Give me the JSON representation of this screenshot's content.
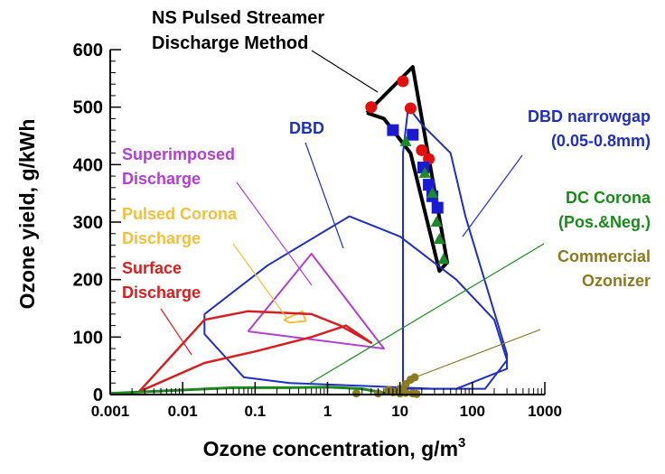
{
  "chart_data": {
    "type": "scatter",
    "title": "",
    "xlabel": "Ozone concentration, g/m",
    "xlabel_sup": "3",
    "ylabel": "Ozone yield, g/kWh",
    "x_scale": "log",
    "xlim": [
      0.001,
      1000
    ],
    "ylim": [
      0,
      600
    ],
    "xticks": [
      0.001,
      0.01,
      0.1,
      1,
      10,
      100,
      1000
    ],
    "xtick_labels": [
      "0.001",
      "0.01",
      "0.1",
      "1",
      "10",
      "100",
      "1000"
    ],
    "yticks": [
      0,
      100,
      200,
      300,
      400,
      500,
      600
    ],
    "ytick_labels": [
      "0",
      "100",
      "200",
      "300",
      "400",
      "500",
      "600"
    ],
    "colors": {
      "ns": "#000000",
      "dbd": "#1f2fbf",
      "superimposed": "#b040d0",
      "pulsed_corona": "#f0c040",
      "surface": "#d42020",
      "dc_corona": "#1a8a1a",
      "commercial": "#8a7a20",
      "ns_circle": "#e01010",
      "ns_square": "#1a1ad0",
      "ns_triangle": "#1a8a2a"
    },
    "regions": [
      {
        "name": "NS Pulsed Streamer Discharge Method",
        "color": "ns",
        "width": 4,
        "points": [
          [
            3.5,
            490
          ],
          [
            15,
            570
          ],
          [
            45,
            230
          ],
          [
            35,
            215
          ],
          [
            14,
            420
          ],
          [
            6,
            480
          ],
          [
            3.5,
            490
          ]
        ]
      },
      {
        "name": "DBD",
        "color": "dbd",
        "width": 2,
        "points": [
          [
            0.02,
            140
          ],
          [
            0.02,
            105
          ],
          [
            0.07,
            30
          ],
          [
            0.3,
            20
          ],
          [
            3,
            15
          ],
          [
            30,
            10
          ],
          [
            150,
            10
          ],
          [
            300,
            60
          ],
          [
            200,
            130
          ],
          [
            60,
            200
          ],
          [
            10,
            275
          ],
          [
            2,
            310
          ],
          [
            0.15,
            225
          ],
          [
            0.02,
            140
          ]
        ]
      },
      {
        "name": "DBD narrowgap (0.05-0.8mm)",
        "color": "dbd",
        "width": 2,
        "points": [
          [
            11,
            10
          ],
          [
            11,
            420
          ],
          [
            13,
            500
          ],
          [
            20,
            470
          ],
          [
            50,
            420
          ],
          [
            80,
            310
          ],
          [
            300,
            70
          ],
          [
            300,
            45
          ],
          [
            60,
            10
          ],
          [
            11,
            10
          ]
        ]
      },
      {
        "name": "Superimposed Discharge",
        "color": "superimposed",
        "width": 2,
        "points": [
          [
            0.08,
            110
          ],
          [
            0.6,
            245
          ],
          [
            6,
            80
          ],
          [
            6,
            80
          ],
          [
            0.08,
            110
          ]
        ]
      },
      {
        "name": "Pulsed Corona Discharge",
        "color": "pulsed_corona",
        "width": 2,
        "points": [
          [
            0.25,
            130
          ],
          [
            0.45,
            145
          ],
          [
            0.5,
            128
          ],
          [
            0.3,
            125
          ],
          [
            0.25,
            130
          ]
        ]
      },
      {
        "name": "Surface Discharge",
        "color": "surface",
        "width": 2.5,
        "points": [
          [
            0.0025,
            5
          ],
          [
            0.02,
            130
          ],
          [
            0.08,
            145
          ],
          [
            0.6,
            140
          ],
          [
            1.5,
            120
          ],
          [
            4,
            90
          ],
          [
            1.8,
            120
          ],
          [
            0.6,
            100
          ],
          [
            0.1,
            75
          ],
          [
            0.02,
            55
          ],
          [
            0.0025,
            5
          ]
        ]
      },
      {
        "name": "DC Corona (Pos.&Neg.)",
        "color": "dc_corona",
        "width": 3,
        "points": [
          [
            0.001,
            2
          ],
          [
            0.05,
            12
          ],
          [
            0.3,
            12
          ],
          [
            1,
            13
          ],
          [
            3,
            10
          ],
          [
            6,
            3
          ],
          [
            10,
            2
          ]
        ]
      }
    ],
    "series": [
      {
        "name": "NS circle",
        "marker": "circle",
        "color": "ns_circle",
        "points": [
          [
            4,
            500
          ],
          [
            11,
            545
          ],
          [
            14,
            498
          ],
          [
            20,
            425
          ],
          [
            25,
            410
          ]
        ]
      },
      {
        "name": "NS square",
        "marker": "square",
        "color": "ns_square",
        "points": [
          [
            8,
            460
          ],
          [
            15,
            452
          ],
          [
            21,
            395
          ],
          [
            25,
            365
          ],
          [
            28,
            345
          ],
          [
            33,
            325
          ]
        ]
      },
      {
        "name": "NS triangle",
        "marker": "triangle",
        "color": "ns_triangle",
        "points": [
          [
            12,
            440
          ],
          [
            22,
            385
          ],
          [
            28,
            350
          ],
          [
            32,
            300
          ],
          [
            35,
            270
          ],
          [
            40,
            235
          ]
        ]
      },
      {
        "name": "Commercial Ozonizer",
        "marker": "circle-small",
        "color": "commercial",
        "points": [
          [
            2.5,
            2
          ],
          [
            5,
            2
          ],
          [
            8,
            4
          ],
          [
            10,
            2
          ],
          [
            12,
            3
          ],
          [
            15,
            2
          ],
          [
            17,
            1
          ],
          [
            7,
            8
          ],
          [
            10,
            10
          ],
          [
            12,
            18
          ],
          [
            14,
            26
          ],
          [
            16,
            30
          ],
          [
            9,
            5
          ],
          [
            11,
            7
          ]
        ]
      }
    ],
    "annotations": [
      {
        "lines": [
          "NS Pulsed Streamer",
          "Discharge Method"
        ],
        "color": "ns",
        "size": 20,
        "anchor": "start",
        "tx": 168,
        "ty": 26,
        "lh": 28,
        "leader": [
          [
            345,
            56
          ],
          [
            418,
            102
          ]
        ]
      },
      {
        "lines": [
          "DBD"
        ],
        "color": "dbd",
        "size": 18,
        "anchor": "start",
        "tx": 320,
        "ty": 148,
        "lh": 22,
        "leader": [
          [
            338,
            158
          ],
          [
            380,
            275
          ]
        ]
      },
      {
        "lines": [
          "DBD narrowgap",
          "(0.05-0.8mm)"
        ],
        "color": "dbd",
        "size": 18,
        "anchor": "end",
        "tx": 720,
        "ty": 135,
        "lh": 27,
        "leader": [
          [
            578,
            172
          ],
          [
            512,
            262
          ]
        ]
      },
      {
        "lines": [
          "Superimposed",
          "Discharge"
        ],
        "color": "superimposed",
        "size": 18,
        "anchor": "start",
        "tx": 135,
        "ty": 177,
        "lh": 27,
        "leader": [
          [
            262,
            202
          ],
          [
            345,
            316
          ]
        ]
      },
      {
        "lines": [
          "Pulsed Corona",
          "Discharge"
        ],
        "color": "pulsed_corona",
        "size": 18,
        "anchor": "start",
        "tx": 135,
        "ty": 243,
        "lh": 27,
        "leader": [
          [
            258,
            270
          ],
          [
            318,
            353
          ]
        ]
      },
      {
        "lines": [
          "Surface",
          "Discharge"
        ],
        "color": "surface",
        "size": 18,
        "anchor": "start",
        "tx": 135,
        "ty": 303,
        "lh": 27,
        "leader": [
          [
            178,
            342
          ],
          [
            212,
            393
          ]
        ]
      },
      {
        "lines": [
          "DC Corona",
          "(Pos.&Neg.)"
        ],
        "color": "dc_corona",
        "size": 18,
        "anchor": "end",
        "tx": 720,
        "ty": 225,
        "lh": 27,
        "leader": [
          [
            602,
            270
          ],
          [
            342,
            425
          ]
        ]
      },
      {
        "lines": [
          "Commercial",
          "Ozonizer"
        ],
        "color": "commercial",
        "size": 18,
        "anchor": "end",
        "tx": 720,
        "ty": 290,
        "lh": 27,
        "leader": [
          [
            598,
            365
          ],
          [
            462,
            417
          ]
        ]
      }
    ]
  }
}
